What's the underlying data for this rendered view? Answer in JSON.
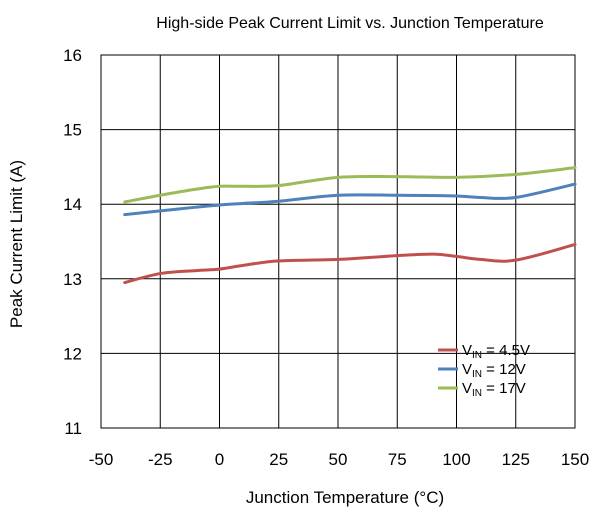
{
  "chart_data": {
    "type": "line",
    "title": "High-side Peak Current Limit vs. Junction Temperature",
    "xlabel": "Junction Temperature (°C)",
    "ylabel": "Peak Current Limit (A)",
    "xlim": [
      -50,
      150
    ],
    "ylim": [
      11,
      16
    ],
    "xticks": [
      -50,
      -25,
      0,
      25,
      50,
      75,
      100,
      125,
      150
    ],
    "yticks": [
      11,
      12,
      13,
      14,
      15,
      16
    ],
    "xtick_labels": [
      "-50",
      "-25",
      "0",
      "25",
      "50",
      "75",
      "100",
      "125",
      "150"
    ],
    "ytick_labels": [
      "11",
      "12",
      "13",
      "14",
      "15",
      "16"
    ],
    "grid": true,
    "legend_position": "bottom-right",
    "series": [
      {
        "name": "V_IN = 4.5V",
        "label_main": "V",
        "label_sub": "IN",
        "label_rest": " = 4.5V",
        "color": "#c0504d",
        "x": [
          -40,
          -25,
          -10,
          0,
          10,
          25,
          50,
          75,
          90,
          100,
          110,
          125,
          150
        ],
        "y": [
          12.95,
          13.07,
          13.11,
          13.13,
          13.18,
          13.24,
          13.26,
          13.31,
          13.33,
          13.3,
          13.26,
          13.25,
          13.46
        ]
      },
      {
        "name": "V_IN = 12V",
        "label_main": "V",
        "label_sub": "IN",
        "label_rest": " = 12V",
        "color": "#4f81bd",
        "x": [
          -40,
          -25,
          -10,
          0,
          10,
          25,
          50,
          75,
          100,
          110,
          125,
          150
        ],
        "y": [
          13.86,
          13.91,
          13.96,
          13.99,
          14.01,
          14.04,
          14.12,
          14.12,
          14.11,
          14.09,
          14.09,
          14.27
        ]
      },
      {
        "name": "V_IN = 17V",
        "label_main": "V",
        "label_sub": "IN",
        "label_rest": " = 17V",
        "color": "#9bbb59",
        "x": [
          -40,
          -25,
          -10,
          0,
          10,
          25,
          50,
          75,
          100,
          125,
          150
        ],
        "y": [
          14.03,
          14.12,
          14.2,
          14.24,
          14.24,
          14.25,
          14.36,
          14.37,
          14.36,
          14.4,
          14.49
        ]
      }
    ]
  }
}
